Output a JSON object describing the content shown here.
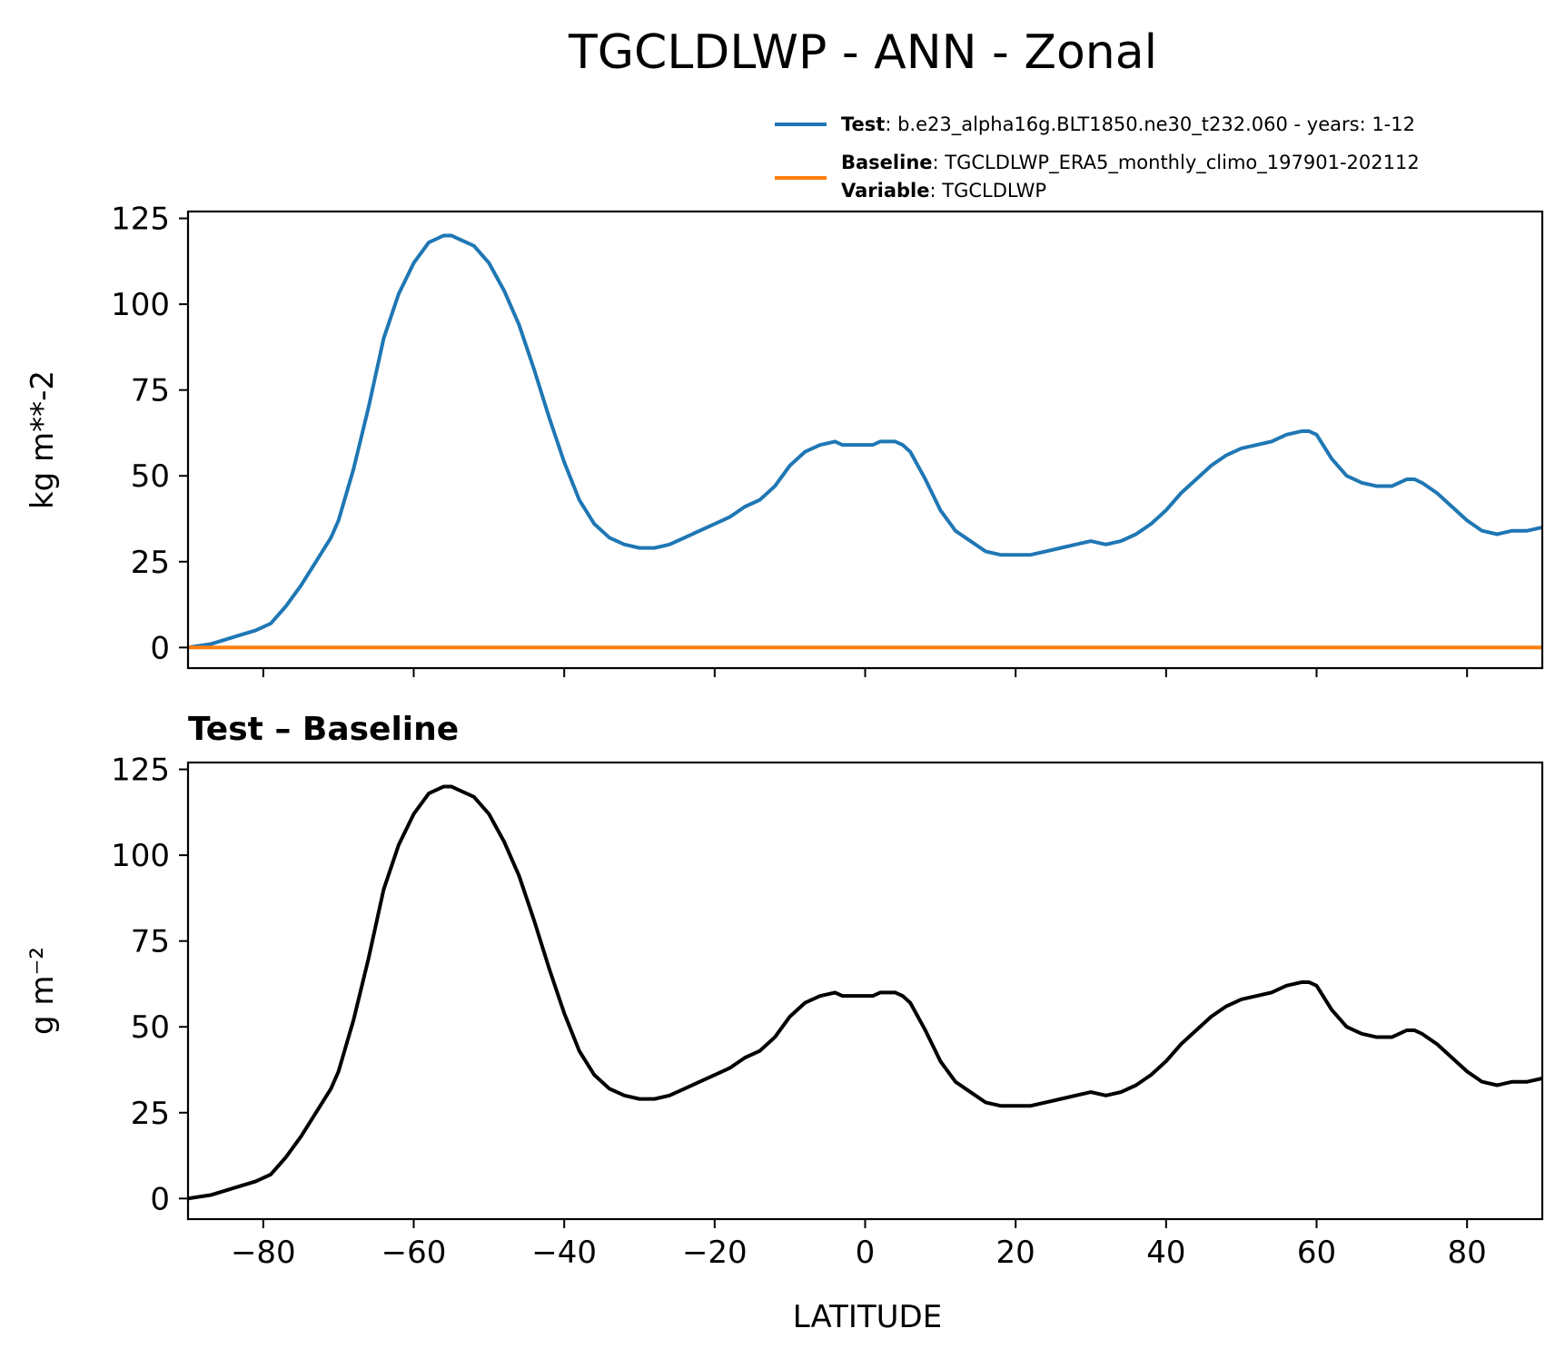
{
  "figure": {
    "title": "TGCLDLWP - ANN - Zonal",
    "legend": {
      "entries": [
        {
          "label": "Test",
          "text": ": b.e23_alpha16g.BLT1850.ne30_t232.060 - years: 1-12",
          "color": "#1f77b4"
        },
        {
          "label": "Baseline",
          "text": ": TGCLDLWP_ERA5_monthly_climo_197901-202112",
          "color": "#ff7f0e"
        },
        {
          "label": "Variable",
          "text": ": TGCLDLWP",
          "color": ""
        }
      ]
    }
  },
  "chart_data": [
    {
      "type": "line",
      "panel": "top",
      "ylabel": "kg m**-2",
      "xlim": [
        -90,
        90
      ],
      "ylim": [
        -6,
        127
      ],
      "yticks": [
        0,
        25,
        50,
        75,
        100,
        125
      ],
      "xticks": [
        -80,
        -60,
        -40,
        -20,
        0,
        20,
        40,
        60,
        80
      ],
      "series": [
        {
          "name": "Test",
          "color": "#1f77b4",
          "x": [
            -90,
            -87,
            -84,
            -81,
            -79,
            -77,
            -75,
            -73,
            -71,
            -70,
            -68,
            -66,
            -64,
            -62,
            -60,
            -58,
            -56,
            -55,
            -54,
            -52,
            -50,
            -48,
            -46,
            -44,
            -42,
            -40,
            -38,
            -36,
            -34,
            -32,
            -30,
            -28,
            -26,
            -24,
            -22,
            -20,
            -18,
            -16,
            -14,
            -12,
            -10,
            -8,
            -6,
            -4,
            -3,
            -2,
            -1,
            0,
            1,
            2,
            3,
            4,
            5,
            6,
            8,
            10,
            12,
            14,
            16,
            18,
            20,
            22,
            24,
            26,
            28,
            30,
            32,
            34,
            36,
            38,
            40,
            42,
            44,
            46,
            48,
            50,
            52,
            54,
            56,
            58,
            59,
            60,
            62,
            64,
            66,
            68,
            70,
            72,
            73,
            74,
            76,
            78,
            80,
            82,
            84,
            86,
            88,
            90
          ],
          "values": [
            0,
            1,
            3,
            5,
            7,
            12,
            18,
            25,
            32,
            37,
            52,
            70,
            90,
            103,
            112,
            118,
            120,
            120,
            119,
            117,
            112,
            104,
            94,
            81,
            67,
            54,
            43,
            36,
            32,
            30,
            29,
            29,
            30,
            32,
            34,
            36,
            38,
            41,
            43,
            47,
            53,
            57,
            59,
            60,
            59,
            59,
            59,
            59,
            59,
            60,
            60,
            60,
            59,
            57,
            49,
            40,
            34,
            31,
            28,
            27,
            27,
            27,
            28,
            29,
            30,
            31,
            30,
            31,
            33,
            36,
            40,
            45,
            49,
            53,
            56,
            58,
            59,
            60,
            62,
            63,
            63,
            62,
            55,
            50,
            48,
            47,
            47,
            49,
            49,
            48,
            45,
            41,
            37,
            34,
            33,
            34,
            34,
            35
          ]
        },
        {
          "name": "Baseline",
          "color": "#ff7f0e",
          "x": [
            -90,
            90
          ],
          "values": [
            0,
            0
          ]
        }
      ]
    },
    {
      "type": "line",
      "panel": "bottom",
      "title": "Test – Baseline",
      "xlabel": "LATITUDE",
      "ylabel": "g m⁻²",
      "xlim": [
        -90,
        90
      ],
      "ylim": [
        -6,
        127
      ],
      "yticks": [
        0,
        25,
        50,
        75,
        100,
        125
      ],
      "xticks": [
        -80,
        -60,
        -40,
        -20,
        0,
        20,
        40,
        60,
        80
      ],
      "series": [
        {
          "color": "#000000",
          "x": [
            -90,
            -87,
            -84,
            -81,
            -79,
            -77,
            -75,
            -73,
            -71,
            -70,
            -68,
            -66,
            -64,
            -62,
            -60,
            -58,
            -56,
            -55,
            -54,
            -52,
            -50,
            -48,
            -46,
            -44,
            -42,
            -40,
            -38,
            -36,
            -34,
            -32,
            -30,
            -28,
            -26,
            -24,
            -22,
            -20,
            -18,
            -16,
            -14,
            -12,
            -10,
            -8,
            -6,
            -4,
            -3,
            -2,
            -1,
            0,
            1,
            2,
            3,
            4,
            5,
            6,
            8,
            10,
            12,
            14,
            16,
            18,
            20,
            22,
            24,
            26,
            28,
            30,
            32,
            34,
            36,
            38,
            40,
            42,
            44,
            46,
            48,
            50,
            52,
            54,
            56,
            58,
            59,
            60,
            62,
            64,
            66,
            68,
            70,
            72,
            73,
            74,
            76,
            78,
            80,
            82,
            84,
            86,
            88,
            90
          ],
          "values": [
            0,
            1,
            3,
            5,
            7,
            12,
            18,
            25,
            32,
            37,
            52,
            70,
            90,
            103,
            112,
            118,
            120,
            120,
            119,
            117,
            112,
            104,
            94,
            81,
            67,
            54,
            43,
            36,
            32,
            30,
            29,
            29,
            30,
            32,
            34,
            36,
            38,
            41,
            43,
            47,
            53,
            57,
            59,
            60,
            59,
            59,
            59,
            59,
            59,
            60,
            60,
            60,
            59,
            57,
            49,
            40,
            34,
            31,
            28,
            27,
            27,
            27,
            28,
            29,
            30,
            31,
            30,
            31,
            33,
            36,
            40,
            45,
            49,
            53,
            56,
            58,
            59,
            60,
            62,
            63,
            63,
            62,
            55,
            50,
            48,
            47,
            47,
            49,
            49,
            48,
            45,
            41,
            37,
            34,
            33,
            34,
            34,
            35
          ]
        }
      ]
    }
  ]
}
